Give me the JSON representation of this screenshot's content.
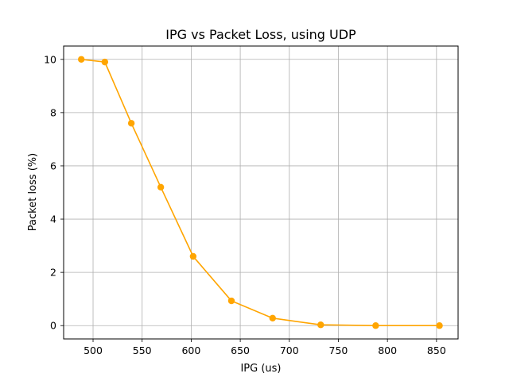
{
  "chart_data": {
    "type": "line",
    "title": "IPG vs Packet Loss, using UDP",
    "xlabel": "IPG (us)",
    "ylabel": "Packet loss (%)",
    "xlim": [
      470,
      872
    ],
    "ylim": [
      -0.5,
      10.5
    ],
    "xticks": [
      500,
      550,
      600,
      650,
      700,
      750,
      800,
      850
    ],
    "yticks": [
      0,
      2,
      4,
      6,
      8,
      10
    ],
    "grid": true,
    "series": [
      {
        "color": "#ffa500",
        "marker": "circle",
        "x": [
          488,
          512,
          539,
          569,
          602,
          641,
          683,
          732,
          788,
          853
        ],
        "y": [
          10.0,
          9.9,
          7.6,
          5.2,
          2.6,
          0.93,
          0.28,
          0.03,
          0.0,
          0.0
        ]
      }
    ]
  }
}
